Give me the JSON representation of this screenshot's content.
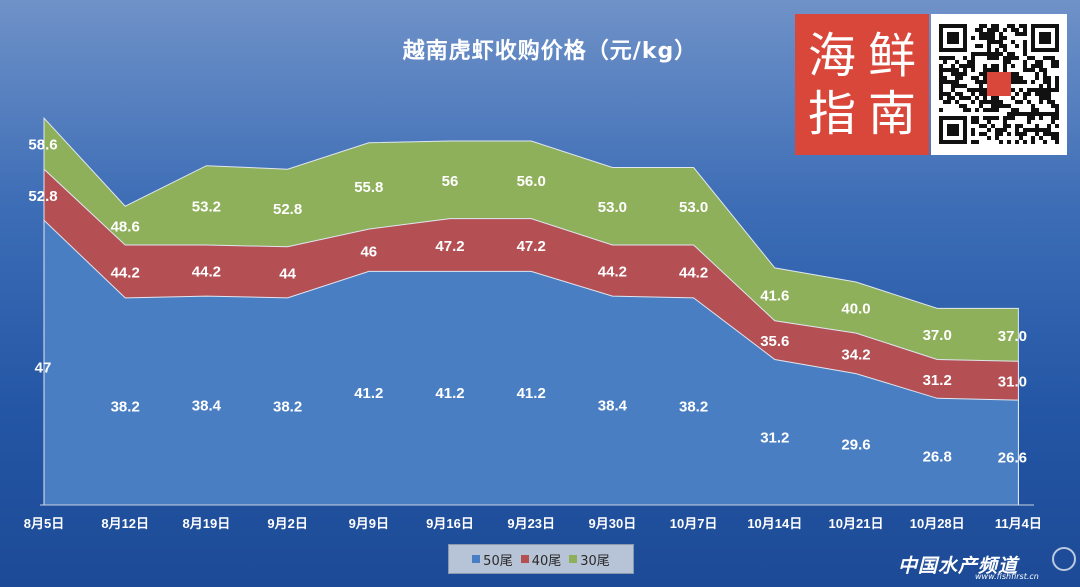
{
  "chart_data": {
    "type": "area",
    "title": "越南虎虾收购价格（元/kg）",
    "stacked": false,
    "categories": [
      "8月5日",
      "8月12日",
      "8月19日",
      "9月2日",
      "9月9日",
      "9月16日",
      "9月23日",
      "9月30日",
      "10月7日",
      "10月14日",
      "10月21日",
      "10月28日",
      "11月4日"
    ],
    "series": [
      {
        "name": "50尾",
        "color": "#4a7ec2",
        "values": [
          47,
          38.2,
          38.4,
          38.2,
          41.2,
          41.2,
          41.2,
          38.4,
          38.2,
          31.2,
          29.6,
          26.8,
          26.6
        ],
        "labels": [
          "47",
          "38.2",
          "38.4",
          "38.2",
          "41.2",
          "41.2",
          "41.2",
          "38.4",
          "38.2",
          "31.2",
          "29.6",
          "26.8",
          "26.6"
        ]
      },
      {
        "name": "40尾",
        "color": "#b44f54",
        "values": [
          52.8,
          44.2,
          44.2,
          44,
          46,
          47.2,
          47.2,
          44.2,
          44.2,
          35.6,
          34.2,
          31.2,
          31.0
        ],
        "labels": [
          "52.8",
          "44.2",
          "44.2",
          "44",
          "46",
          "47.2",
          "47.2",
          "44.2",
          "44.2",
          "35.6",
          "34.2",
          "31.2",
          "31.0"
        ]
      },
      {
        "name": "30尾",
        "color": "#8fb05a",
        "values": [
          58.6,
          48.6,
          53.2,
          52.8,
          55.8,
          56,
          56.0,
          53.0,
          53.0,
          41.6,
          40.0,
          37.0,
          37.0
        ],
        "labels": [
          "58.6",
          "48.6",
          "53.2",
          "52.8",
          "55.8",
          "56",
          "56.0",
          "53.0",
          "53.0",
          "41.6",
          "40.0",
          "37.0",
          "37.0"
        ]
      }
    ],
    "legend_position": "bottom",
    "grid": false
  },
  "logo": {
    "text": [
      "海",
      "鲜",
      "指",
      "南"
    ]
  },
  "watermark": {
    "title": "中国水产频道",
    "url": "www.fishfirst.cn"
  }
}
